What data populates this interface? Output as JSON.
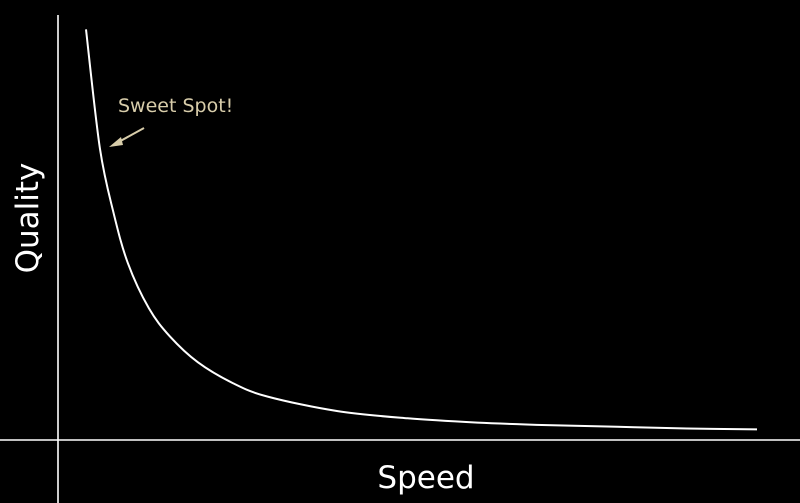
{
  "chart_data": {
    "type": "line",
    "title": "",
    "xlabel": "Speed",
    "ylabel": "Quality",
    "grid": false,
    "xlim": [
      0,
      1
    ],
    "ylim": [
      0,
      1
    ],
    "series": [
      {
        "x": [
          0.04,
          0.06,
          0.08,
          0.1,
          0.13,
          0.16,
          0.2,
          0.25,
          0.3,
          0.4,
          0.5,
          0.6,
          0.7,
          0.8,
          0.9,
          1.0
        ],
        "y": [
          0.966,
          0.686,
          0.531,
          0.416,
          0.31,
          0.244,
          0.183,
          0.134,
          0.102,
          0.068,
          0.051,
          0.041,
          0.035,
          0.031,
          0.027,
          0.025
        ]
      }
    ],
    "annotations": [
      {
        "text": "Sweet Spot!",
        "x": 0.08,
        "y": 0.67
      }
    ],
    "colors": {
      "background": "#000000",
      "axis": "#ffffff",
      "curve": "#ffffff",
      "annotation": "#d8cdaa"
    }
  }
}
